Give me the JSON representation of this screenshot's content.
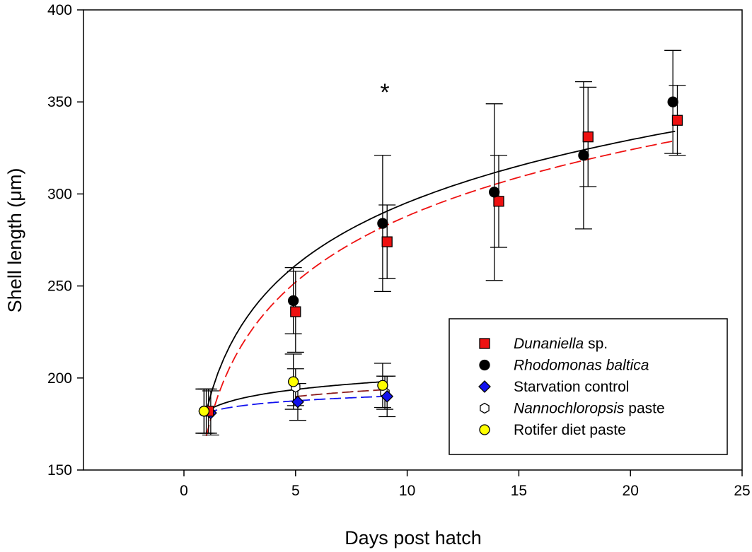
{
  "chart_data": {
    "type": "scatter",
    "title": "",
    "xlabel": "Days post hatch",
    "ylabel": "Shell length (μm)",
    "xlim": [
      -4.5,
      25
    ],
    "ylim": [
      150,
      400
    ],
    "xticks": [
      0,
      5,
      10,
      15,
      20,
      25
    ],
    "yticks": [
      150,
      200,
      250,
      300,
      350,
      400
    ],
    "xtick_labels": [
      "0",
      "5",
      "10",
      "15",
      "20",
      "25"
    ],
    "ytick_labels": [
      "150",
      "200",
      "250",
      "300",
      "350",
      "400"
    ],
    "grid": false,
    "legend_position": "bottom-right",
    "annotations": [
      {
        "text": "*",
        "x": 9,
        "y": 354
      }
    ],
    "series": [
      {
        "name": "Dunaniella sp.",
        "name_italic": "Dunaniella",
        "name_plain": " sp.",
        "marker": "square",
        "color": "#ee1111",
        "x": [
          1.1,
          5.0,
          9.1,
          14.1,
          18.1,
          22.1
        ],
        "y": [
          182,
          236,
          274,
          296,
          331,
          340
        ],
        "err": [
          12,
          22,
          20,
          25,
          27,
          19
        ]
      },
      {
        "name": "Rhodomonas baltica",
        "name_italic": "Rhodomonas baltica",
        "name_plain": "",
        "marker": "circle",
        "color": "#000000",
        "x": [
          0.9,
          4.9,
          8.9,
          13.9,
          17.9,
          21.9
        ],
        "y": [
          182,
          242,
          284,
          301,
          321,
          350
        ],
        "err": [
          12,
          18,
          37,
          48,
          40,
          28
        ]
      },
      {
        "name": "Starvation control",
        "name_italic": "",
        "name_plain": "Starvation control",
        "marker": "diamond",
        "color": "#1111ee",
        "x": [
          1.2,
          5.1,
          9.1
        ],
        "y": [
          181,
          187,
          190
        ],
        "err": [
          12,
          10,
          11
        ]
      },
      {
        "name": "Nannochloropsis paste",
        "name_italic": "Nannochloropsis",
        "name_plain": " paste",
        "marker": "hexagon",
        "color": "#ffffff",
        "x": [
          1.0,
          5.0,
          9.0
        ],
        "y": [
          182,
          195,
          192
        ],
        "err": [
          12,
          10,
          9
        ]
      },
      {
        "name": "Rotifer diet paste",
        "name_italic": "",
        "name_plain": "Rotifer diet paste",
        "marker": "circle",
        "color": "#ffff00",
        "x": [
          0.9,
          4.9,
          8.9
        ],
        "y": [
          182,
          198,
          196
        ],
        "err": [
          12,
          15,
          12
        ]
      }
    ],
    "fit_curves": [
      {
        "name": "Rhodomonas fit",
        "style": "solid",
        "color": "#000000",
        "x_range": [
          1.0,
          22.0
        ],
        "a": 182,
        "b": 49.2
      },
      {
        "name": "Dunaniella fit",
        "style": "dashed",
        "color": "#ee1111",
        "x_range": [
          1.0,
          22.0
        ],
        "a": 168.5,
        "b": 51.9
      },
      {
        "name": "Rotifer paste fit",
        "style": "solid",
        "color": "#000000",
        "x_range": [
          1.0,
          9.0
        ],
        "a": 182,
        "b": 7.3
      },
      {
        "name": "Nannochloropsis paste fit",
        "style": "dashed",
        "color": "#8b1a1a",
        "x_range": [
          5.0,
          9.0
        ],
        "a": 179.6,
        "b": 6.4
      },
      {
        "name": "Starvation fit",
        "style": "dashed",
        "color": "#1111ee",
        "x_range": [
          1.0,
          9.0
        ],
        "a": 181,
        "b": 4.1
      }
    ]
  }
}
